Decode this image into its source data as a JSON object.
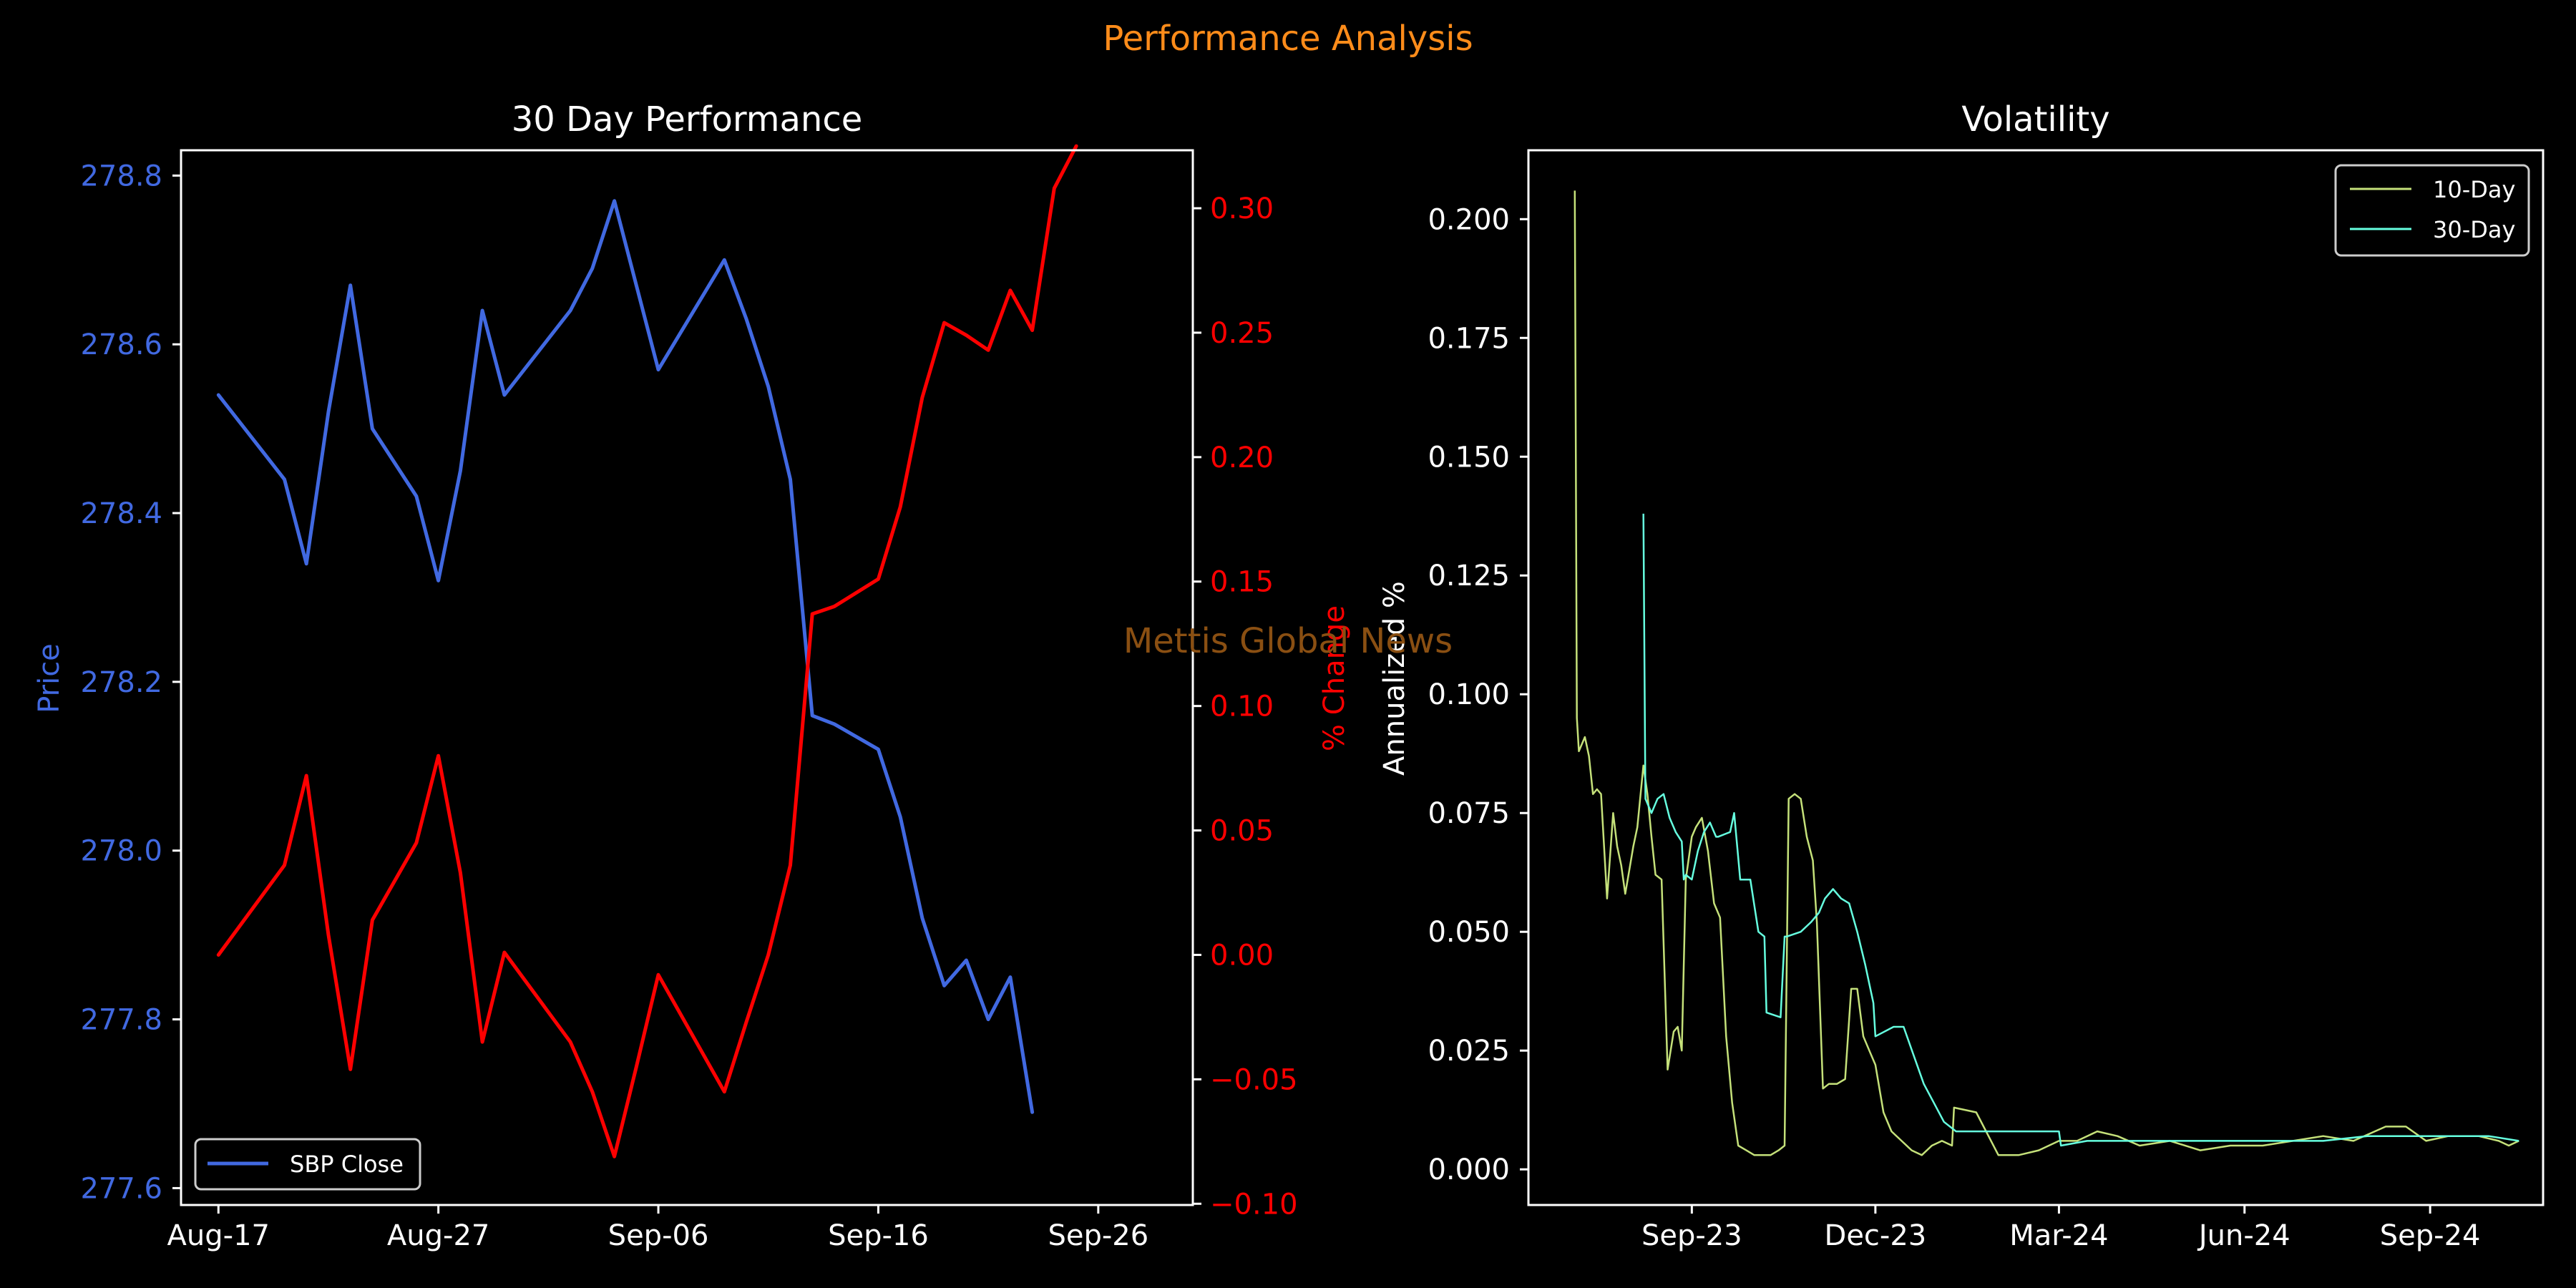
{
  "figure": {
    "title": "Performance Analysis",
    "watermark": "Mettis Global News",
    "background": "#000000",
    "title_color": "#ff8c1a",
    "watermark_color": "#8a4f12"
  },
  "chart_data": [
    {
      "type": "line",
      "title": "30 Day Performance",
      "xlabel": "",
      "ylabel": "Price",
      "y2label": "% Change",
      "x_ticks": [
        "Aug-17",
        "Aug-27",
        "Sep-06",
        "Sep-16",
        "Sep-26"
      ],
      "x_tick_days": [
        0,
        10,
        20,
        30,
        40
      ],
      "xlim_days": [
        -1.7,
        44.3
      ],
      "ylim": [
        277.58,
        278.83
      ],
      "y_ticks": [
        "277.6",
        "277.8",
        "278.0",
        "278.2",
        "278.4",
        "278.6",
        "278.8"
      ],
      "y2lim": [
        -0.1005,
        0.3233
      ],
      "y2_ticks": [
        "−0.10",
        "−0.05",
        "0.00",
        "0.05",
        "0.10",
        "0.15",
        "0.20",
        "0.25",
        "0.30"
      ],
      "legend_position": "lower-left",
      "legend": [
        "SBP Close"
      ],
      "price_color": "#4169e1",
      "change_color": "#ff0000",
      "series": [
        {
          "name": "SBP Close",
          "axis": "left",
          "color": "#4169e1",
          "day": [
            0,
            3,
            4,
            5,
            6,
            7,
            9,
            10,
            11,
            12,
            13,
            16,
            17,
            18,
            19,
            20,
            23,
            24,
            25,
            26,
            27,
            28,
            30,
            31,
            32,
            33,
            34,
            35,
            36,
            37
          ],
          "values": [
            278.54,
            278.44,
            278.34,
            278.52,
            278.67,
            278.5,
            278.42,
            278.32,
            278.45,
            278.64,
            278.54,
            278.64,
            278.69,
            278.77,
            278.67,
            278.57,
            278.7,
            278.63,
            278.55,
            278.44,
            278.16,
            278.15,
            278.12,
            278.04,
            277.92,
            277.84,
            277.87,
            277.8,
            277.85,
            277.69
          ]
        },
        {
          "name": "% Change",
          "axis": "right",
          "color": "#ff0000",
          "day": [
            0,
            3,
            4,
            5,
            6,
            7,
            9,
            10,
            11,
            12,
            13,
            16,
            17,
            18,
            19,
            20,
            23,
            24,
            25,
            26,
            27,
            28,
            30,
            31,
            32,
            33,
            34,
            35,
            36,
            37,
            38,
            39
          ],
          "values": [
            0.0,
            0.036,
            0.072,
            0.008,
            -0.046,
            0.014,
            0.045,
            0.08,
            0.033,
            -0.035,
            0.001,
            -0.035,
            -0.055,
            -0.081,
            -0.045,
            -0.008,
            -0.055,
            -0.027,
            0.0,
            0.036,
            0.137,
            0.14,
            0.151,
            0.18,
            0.224,
            0.254,
            0.249,
            0.243,
            0.267,
            0.251,
            0.308,
            0.325
          ]
        }
      ]
    },
    {
      "type": "line",
      "title": "Volatility",
      "xlabel": "",
      "ylabel": "Annualized %",
      "x_ticks": [
        "Sep-23",
        "Dec-23",
        "Mar-24",
        "Jun-24",
        "Sep-24"
      ],
      "x_tick_dates": [
        "2023-09-01",
        "2023-12-01",
        "2024-03-01",
        "2024-06-01",
        "2024-09-01"
      ],
      "xlim_dates": [
        "2023-06-12",
        "2024-10-27"
      ],
      "ylim": [
        -0.0075,
        0.2145
      ],
      "y_ticks": [
        "0.000",
        "0.025",
        "0.050",
        "0.075",
        "0.100",
        "0.125",
        "0.150",
        "0.175",
        "0.200"
      ],
      "legend_position": "top-right",
      "legend": [
        "10-Day",
        "30-Day"
      ],
      "series": [
        {
          "name": "10-Day",
          "color": "#c5e17a",
          "dates": [
            "2023-07-05",
            "2023-07-06",
            "2023-07-07",
            "2023-07-10",
            "2023-07-12",
            "2023-07-14",
            "2023-07-16",
            "2023-07-18",
            "2023-07-21",
            "2023-07-24",
            "2023-07-26",
            "2023-07-28",
            "2023-07-30",
            "2023-08-01",
            "2023-08-03",
            "2023-08-05",
            "2023-08-08",
            "2023-08-10",
            "2023-08-12",
            "2023-08-14",
            "2023-08-17",
            "2023-08-20",
            "2023-08-23",
            "2023-08-25",
            "2023-08-27",
            "2023-08-29",
            "2023-09-01",
            "2023-09-03",
            "2023-09-06",
            "2023-09-09",
            "2023-09-12",
            "2023-09-15",
            "2023-09-18",
            "2023-09-21",
            "2023-09-24",
            "2023-09-28",
            "2023-10-02",
            "2023-10-06",
            "2023-10-10",
            "2023-10-14",
            "2023-10-17",
            "2023-10-19",
            "2023-10-22",
            "2023-10-25",
            "2023-10-28",
            "2023-10-31",
            "2023-11-02",
            "2023-11-05",
            "2023-11-08",
            "2023-11-12",
            "2023-11-16",
            "2023-11-19",
            "2023-11-22",
            "2023-11-25",
            "2023-11-28",
            "2023-12-01",
            "2023-12-05",
            "2023-12-09",
            "2023-12-14",
            "2023-12-19",
            "2023-12-24",
            "2023-12-29",
            "2024-01-03",
            "2024-01-08",
            "2024-01-09",
            "2024-01-20",
            "2024-01-31",
            "2024-02-01",
            "2024-02-10",
            "2024-02-20",
            "2024-03-01",
            "2024-03-10",
            "2024-03-20",
            "2024-03-30",
            "2024-04-10",
            "2024-04-25",
            "2024-05-10",
            "2024-05-25",
            "2024-06-10",
            "2024-06-25",
            "2024-07-10",
            "2024-07-25",
            "2024-08-10",
            "2024-08-20",
            "2024-08-30",
            "2024-09-10",
            "2024-09-25",
            "2024-10-05",
            "2024-10-10",
            "2024-10-15"
          ],
          "values": [
            0.206,
            0.095,
            0.088,
            0.091,
            0.087,
            0.079,
            0.08,
            0.079,
            0.057,
            0.075,
            0.068,
            0.064,
            0.058,
            0.063,
            0.068,
            0.072,
            0.085,
            0.079,
            0.07,
            0.062,
            0.061,
            0.021,
            0.029,
            0.03,
            0.025,
            0.061,
            0.07,
            0.072,
            0.074,
            0.067,
            0.056,
            0.053,
            0.028,
            0.014,
            0.005,
            0.004,
            0.003,
            0.003,
            0.003,
            0.004,
            0.005,
            0.078,
            0.079,
            0.078,
            0.07,
            0.065,
            0.052,
            0.017,
            0.018,
            0.018,
            0.019,
            0.038,
            0.038,
            0.028,
            0.025,
            0.022,
            0.012,
            0.008,
            0.006,
            0.004,
            0.003,
            0.005,
            0.006,
            0.005,
            0.013,
            0.012,
            0.003,
            0.003,
            0.003,
            0.004,
            0.006,
            0.006,
            0.008,
            0.007,
            0.005,
            0.006,
            0.004,
            0.005,
            0.005,
            0.006,
            0.007,
            0.006,
            0.009,
            0.009,
            0.006,
            0.007,
            0.007,
            0.006,
            0.005,
            0.006
          ]
        },
        {
          "name": "30-Day",
          "color": "#66ffe0",
          "dates": [
            "2023-08-08",
            "2023-08-09",
            "2023-08-12",
            "2023-08-15",
            "2023-08-18",
            "2023-08-21",
            "2023-08-24",
            "2023-08-27",
            "2023-08-28",
            "2023-08-29",
            "2023-09-01",
            "2023-09-04",
            "2023-09-07",
            "2023-09-10",
            "2023-09-13",
            "2023-09-14",
            "2023-09-20",
            "2023-09-22",
            "2023-09-25",
            "2023-09-30",
            "2023-10-04",
            "2023-10-07",
            "2023-10-08",
            "2023-10-15",
            "2023-10-17",
            "2023-10-18",
            "2023-10-25",
            "2023-10-30",
            "2023-11-03",
            "2023-11-06",
            "2023-11-10",
            "2023-11-14",
            "2023-11-18",
            "2023-11-22",
            "2023-11-26",
            "2023-11-30",
            "2023-12-01",
            "2023-12-10",
            "2023-12-12",
            "2023-12-15",
            "2023-12-20",
            "2023-12-25",
            "2023-12-30",
            "2024-01-04",
            "2024-01-10",
            "2024-01-20",
            "2024-02-01",
            "2024-02-15",
            "2024-03-01",
            "2024-03-02",
            "2024-03-15",
            "2024-04-01",
            "2024-04-20",
            "2024-05-10",
            "2024-06-01",
            "2024-06-20",
            "2024-07-10",
            "2024-08-01",
            "2024-08-20",
            "2024-09-10",
            "2024-09-30",
            "2024-10-15"
          ],
          "values": [
            0.138,
            0.078,
            0.075,
            0.078,
            0.079,
            0.074,
            0.071,
            0.069,
            0.061,
            0.062,
            0.061,
            0.067,
            0.071,
            0.073,
            0.07,
            0.07,
            0.071,
            0.075,
            0.061,
            0.061,
            0.05,
            0.049,
            0.033,
            0.032,
            0.049,
            0.049,
            0.05,
            0.052,
            0.054,
            0.057,
            0.059,
            0.057,
            0.056,
            0.05,
            0.043,
            0.035,
            0.028,
            0.03,
            0.03,
            0.03,
            0.024,
            0.018,
            0.014,
            0.01,
            0.008,
            0.008,
            0.008,
            0.008,
            0.008,
            0.005,
            0.006,
            0.006,
            0.006,
            0.006,
            0.006,
            0.006,
            0.006,
            0.007,
            0.007,
            0.007,
            0.007,
            0.006
          ]
        }
      ]
    }
  ]
}
